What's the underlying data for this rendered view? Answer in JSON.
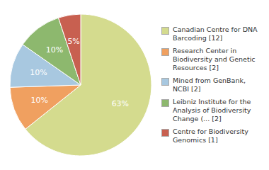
{
  "chart_data": {
    "type": "pie",
    "categories": [
      "Canadian Centre for DNA\nBarcoding [12]",
      "Research Center in\nBiodiversity and Genetic\nResources [2]",
      "Mined from GenBank, NCBI [2]",
      "Leibniz Institute for the\nAnalysis of Biodiversity\nChange (... [2]",
      "Centre for Biodiversity\nGenomics [1]"
    ],
    "values": [
      63,
      10,
      10,
      10,
      5
    ],
    "value_labels": [
      "63%",
      "10%",
      "10%",
      "10%",
      "5%"
    ],
    "colors": [
      "#d4db8e",
      "#f0a060",
      "#a8c8e0",
      "#8db86e",
      "#c86050"
    ],
    "data_labels": true,
    "legend": "right"
  }
}
